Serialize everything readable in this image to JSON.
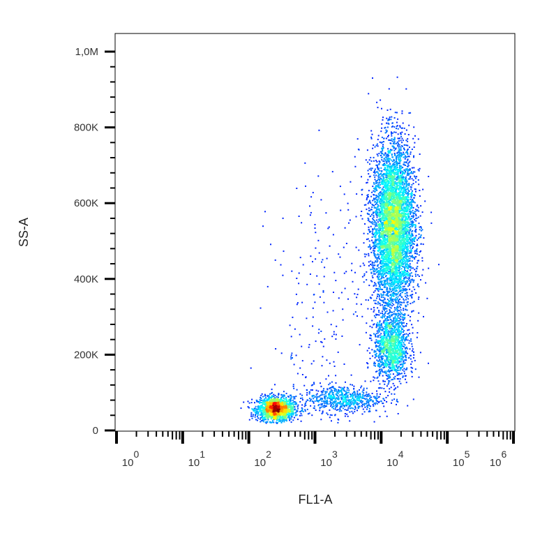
{
  "chart_data": {
    "type": "scatter",
    "subtype": "flow-cytometry-density-dot-plot",
    "xlabel": "FL1-A",
    "ylabel": "SS-A",
    "x_scale": "log",
    "xlim": [
      1,
      1000000
    ],
    "ylim": [
      0,
      1050000
    ],
    "x_ticks": [
      {
        "value": 1,
        "base": "10",
        "exp": "0"
      },
      {
        "value": 10,
        "base": "10",
        "exp": "1"
      },
      {
        "value": 100,
        "base": "10",
        "exp": "2"
      },
      {
        "value": 1000,
        "base": "10",
        "exp": "3"
      },
      {
        "value": 10000,
        "base": "10",
        "exp": "4"
      },
      {
        "value": 100000,
        "base": "10",
        "exp": "5"
      },
      {
        "value": 1000000,
        "base": "10",
        "exp": "6"
      }
    ],
    "y_ticks": [
      {
        "value": 0,
        "label": "0"
      },
      {
        "value": 200000,
        "label": "200K"
      },
      {
        "value": 400000,
        "label": "400K"
      },
      {
        "value": 600000,
        "label": "600K"
      },
      {
        "value": 800000,
        "label": "800K"
      },
      {
        "value": 1000000,
        "label": "1,0M"
      }
    ],
    "grid": false,
    "color_map": "jet density (blue low → red high)",
    "populations": [
      {
        "fl1_center": 250,
        "ss_center": 58000,
        "log_sd": 0.14,
        "ss_sd": 16000,
        "weight": 0.18
      },
      {
        "fl1_center": 2500,
        "ss_center": 85000,
        "log_sd": 0.3,
        "ss_sd": 18000,
        "weight": 0.07
      },
      {
        "fl1_center": 14000,
        "ss_center": 220000,
        "log_sd": 0.13,
        "ss_sd": 45000,
        "weight": 0.14
      },
      {
        "fl1_center": 15000,
        "ss_center": 540000,
        "log_sd": 0.16,
        "ss_sd": 110000,
        "weight": 0.58
      },
      {
        "fl1_center": 2000,
        "ss_center": 300000,
        "log_sd": 0.5,
        "ss_sd": 200000,
        "weight": 0.03
      }
    ]
  }
}
